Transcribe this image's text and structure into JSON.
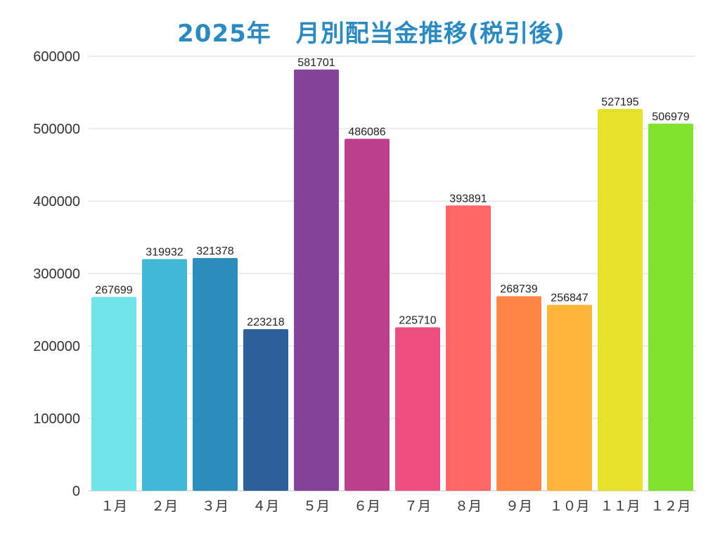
{
  "chart_data": {
    "type": "bar",
    "title": "2025年　月別配当金推移(税引後)",
    "xlabel": "",
    "ylabel": "",
    "ylim": [
      0,
      600000
    ],
    "yticks": [
      0,
      100000,
      200000,
      300000,
      400000,
      500000,
      600000
    ],
    "grid": true,
    "categories": [
      "１月",
      "２月",
      "３月",
      "４月",
      "５月",
      "６月",
      "７月",
      "８月",
      "９月",
      "１０月",
      "１１月",
      "１２月"
    ],
    "values": [
      267699,
      319932,
      321378,
      223218,
      581701,
      486086,
      225710,
      393891,
      268739,
      256847,
      527195,
      506979
    ],
    "colors": [
      "#6fe3e8",
      "#42b8d6",
      "#2c8cbb",
      "#2f5f98",
      "#844599",
      "#bc408c",
      "#ec4f80",
      "#ff6668",
      "#ff8546",
      "#ffb43a",
      "#e6e22c",
      "#81e12f"
    ]
  }
}
